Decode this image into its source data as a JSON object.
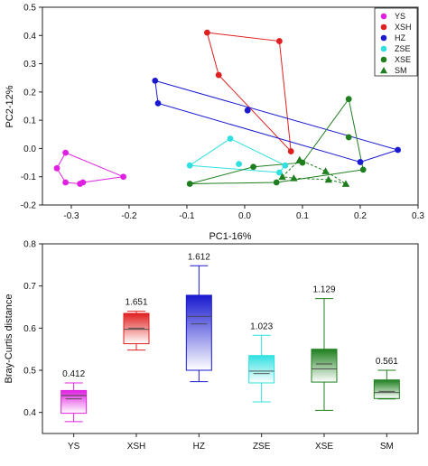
{
  "chart_data": [
    {
      "type": "scatter",
      "xlabel": "PC1-16%",
      "ylabel": "PC2-12%",
      "xlim": [
        -0.35,
        0.3
      ],
      "ylim": [
        -0.2,
        0.5
      ],
      "xticks": [
        -0.3,
        -0.2,
        -0.1,
        0.0,
        0.1,
        0.2,
        0.3
      ],
      "yticks": [
        -0.2,
        -0.1,
        0.0,
        0.1,
        0.2,
        0.3,
        0.4,
        0.5
      ],
      "xtick_labels": [
        "-0.3",
        "-0.2",
        "-0.1",
        "0.0",
        "0.1",
        "0.2",
        "0.3"
      ],
      "ytick_labels": [
        "-0.2",
        "-0.1",
        "0.0",
        "0.1",
        "0.2",
        "0.3",
        "0.4",
        "0.5"
      ],
      "legend_position": "top-right",
      "series": [
        {
          "name": "YS",
          "color": "#e020e0",
          "marker": "circle",
          "points": [
            [
              -0.31,
              -0.015
            ],
            [
              -0.325,
              -0.07
            ],
            [
              -0.31,
              -0.12
            ],
            [
              -0.285,
              -0.125
            ],
            [
              -0.28,
              -0.12
            ],
            [
              -0.21,
              -0.1
            ]
          ],
          "hull": [
            0,
            1,
            2,
            3,
            4,
            5
          ]
        },
        {
          "name": "XSH",
          "color": "#e02020",
          "marker": "circle",
          "points": [
            [
              -0.065,
              0.41
            ],
            [
              -0.045,
              0.26
            ],
            [
              0.06,
              0.38
            ],
            [
              0.08,
              -0.01
            ]
          ],
          "hull": [
            0,
            2,
            3,
            1
          ]
        },
        {
          "name": "HZ",
          "color": "#1a1ad0",
          "marker": "circle",
          "points": [
            [
              -0.155,
              0.24
            ],
            [
              -0.15,
              0.16
            ],
            [
              0.005,
              0.135
            ],
            [
              0.2,
              -0.048
            ],
            [
              0.265,
              -0.005
            ]
          ],
          "hull": [
            0,
            4,
            3,
            1
          ]
        },
        {
          "name": "ZSE",
          "color": "#30e0e0",
          "marker": "circle",
          "points": [
            [
              -0.095,
              -0.06
            ],
            [
              -0.025,
              0.035
            ],
            [
              -0.01,
              -0.055
            ],
            [
              0.06,
              -0.085
            ],
            [
              0.07,
              -0.06
            ]
          ],
          "hull": [
            0,
            1,
            4,
            3
          ]
        },
        {
          "name": "XSE",
          "color": "#1f7f1f",
          "marker": "circle",
          "points": [
            [
              -0.095,
              -0.125
            ],
            [
              0.015,
              -0.065
            ],
            [
              0.055,
              -0.12
            ],
            [
              0.1,
              -0.05
            ],
            [
              0.18,
              0.175
            ],
            [
              0.18,
              0.04
            ],
            [
              0.205,
              -0.075
            ]
          ],
          "hull": [
            0,
            1,
            3,
            4,
            6,
            2
          ]
        },
        {
          "name": "SM",
          "color": "#1f7f1f",
          "marker": "triangle",
          "hull_style": "dashed",
          "points": [
            [
              0.065,
              -0.1
            ],
            [
              0.085,
              -0.105
            ],
            [
              0.095,
              -0.04
            ],
            [
              0.14,
              -0.08
            ],
            [
              0.145,
              -0.11
            ],
            [
              0.175,
              -0.125
            ]
          ],
          "hull": [
            0,
            2,
            3,
            5,
            4,
            1
          ]
        }
      ]
    },
    {
      "type": "box",
      "ylabel": "Bray-Curtis distance",
      "ylim": [
        0.35,
        0.8
      ],
      "yticks": [
        0.4,
        0.5,
        0.6,
        0.7,
        0.8
      ],
      "ytick_labels": [
        "0.4",
        "0.5",
        "0.6",
        "0.7",
        "0.8"
      ],
      "categories": [
        "YS",
        "XSH",
        "HZ",
        "ZSE",
        "XSE",
        "SM"
      ],
      "boxes": [
        {
          "name": "YS",
          "color": "#e020e0",
          "whislo": 0.378,
          "q1": 0.398,
          "median": 0.44,
          "mean": 0.432,
          "q3": 0.452,
          "whishi": 0.47,
          "label": "0.412"
        },
        {
          "name": "XSH",
          "color": "#e02020",
          "whislo": 0.548,
          "q1": 0.563,
          "median": 0.597,
          "mean": 0.6,
          "q3": 0.635,
          "whishi": 0.64,
          "label": "1.651"
        },
        {
          "name": "HZ",
          "color": "#1a1ad0",
          "whislo": 0.473,
          "q1": 0.5,
          "median": 0.628,
          "mean": 0.61,
          "q3": 0.678,
          "whishi": 0.748,
          "label": "1.612"
        },
        {
          "name": "ZSE",
          "color": "#30e0e0",
          "whislo": 0.425,
          "q1": 0.47,
          "median": 0.498,
          "mean": 0.492,
          "q3": 0.535,
          "whishi": 0.583,
          "label": "1.023"
        },
        {
          "name": "XSE",
          "color": "#1f7f1f",
          "whislo": 0.405,
          "q1": 0.472,
          "median": 0.503,
          "mean": 0.515,
          "q3": 0.55,
          "whishi": 0.67,
          "label": "1.129"
        },
        {
          "name": "SM",
          "color": "#1f7f1f",
          "whislo": 0.432,
          "q1": 0.433,
          "median": 0.447,
          "mean": 0.45,
          "q3": 0.477,
          "whishi": 0.5,
          "label": "0.561"
        }
      ]
    }
  ]
}
